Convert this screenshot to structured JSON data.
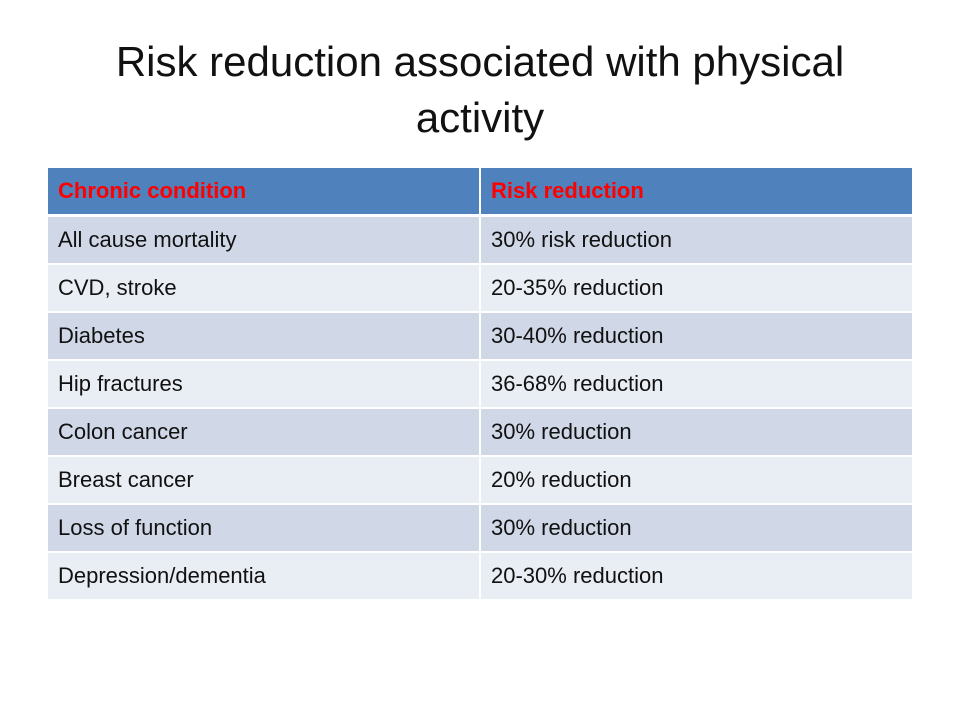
{
  "slide": {
    "title": "Risk reduction associated with physical activity"
  },
  "table": {
    "headers": [
      "Chronic condition",
      "Risk reduction"
    ],
    "rows": [
      [
        "All cause mortality",
        "30% risk reduction"
      ],
      [
        "CVD, stroke",
        "20-35% reduction"
      ],
      [
        "Diabetes",
        "30-40% reduction"
      ],
      [
        "Hip fractures",
        "36-68% reduction"
      ],
      [
        "Colon cancer",
        "30% reduction"
      ],
      [
        "Breast cancer",
        "20% reduction"
      ],
      [
        "Loss of function",
        "30% reduction"
      ],
      [
        "Depression/dementia",
        "20-30% reduction"
      ]
    ]
  },
  "colors": {
    "header_bg": "#4f81bd",
    "header_text": "#ff0000",
    "row_odd_bg": "#d0d8e8",
    "row_even_bg": "#e9edf4"
  }
}
